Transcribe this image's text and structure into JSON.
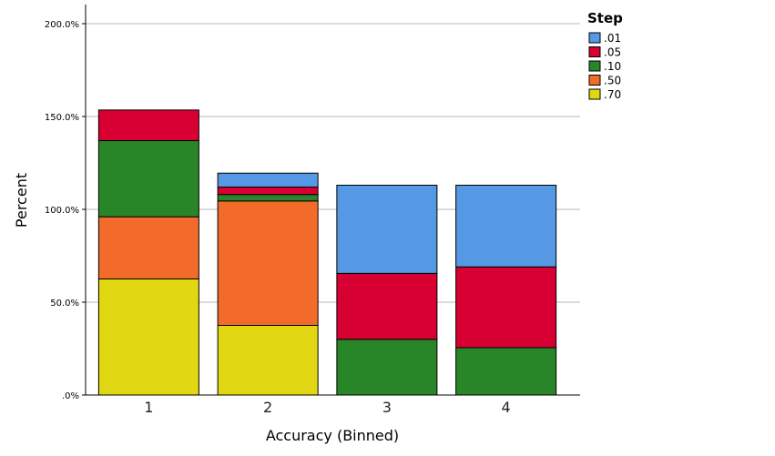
{
  "chart_data": {
    "type": "bar",
    "stacked": true,
    "categories": [
      "1",
      "2",
      "3",
      "4"
    ],
    "xlabel": "Accuracy (Binned)",
    "ylabel": "Percent",
    "ylim": [
      0,
      200
    ],
    "yticks": [
      0,
      50,
      100,
      150,
      200
    ],
    "ytick_labels": [
      ".0%",
      "50.0%",
      "100.0%",
      "150.0%",
      "200.0%"
    ],
    "grid": true,
    "legend": {
      "title": "Step",
      "position": "top-right",
      "order": [
        ".01",
        ".05",
        ".10",
        ".50",
        ".70"
      ]
    },
    "stack_order": [
      ".70",
      ".50",
      ".10",
      ".05",
      ".01"
    ],
    "series": [
      {
        "name": ".01",
        "color": "#5598e3",
        "values": [
          0,
          7.5,
          47.5,
          44.0
        ]
      },
      {
        "name": ".05",
        "color": "#d80032",
        "values": [
          16.5,
          4.0,
          35.5,
          43.5
        ]
      },
      {
        "name": ".10",
        "color": "#288528",
        "values": [
          41.0,
          3.5,
          30.0,
          25.5
        ]
      },
      {
        "name": ".50",
        "color": "#f26b2a",
        "values": [
          33.5,
          67.0,
          0,
          0
        ]
      },
      {
        "name": ".70",
        "color": "#e1d712",
        "values": [
          62.5,
          37.5,
          0,
          0
        ]
      }
    ]
  }
}
